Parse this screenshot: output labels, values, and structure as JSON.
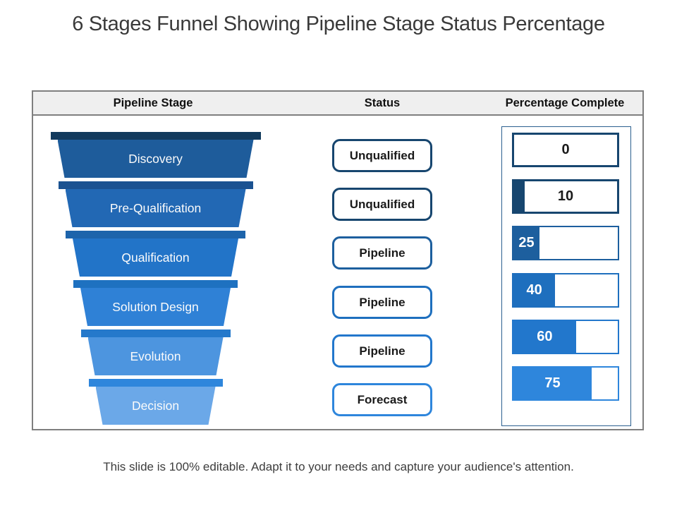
{
  "slide": {
    "title": "6 Stages Funnel Showing Pipeline Stage Status Percentage",
    "footer": "This slide is 100% editable. Adapt it to your needs and capture your audience's attention."
  },
  "table": {
    "headers": [
      "Pipeline Stage",
      "Status",
      "Percentage Complete"
    ]
  },
  "stages": [
    {
      "label": "Discovery",
      "status": "Unqualified",
      "percent": 0,
      "percent_label": "0",
      "bar_color": "#123A5D",
      "body_color": "#1E5C9B",
      "accent": "#17466F"
    },
    {
      "label": "Pre-Qualification",
      "status": "Unqualified",
      "percent": 10,
      "percent_label": "10",
      "bar_color": "#1B5291",
      "body_color": "#2268B4",
      "accent": "#17466F"
    },
    {
      "label": "Qualification",
      "status": "Pipeline",
      "percent": 25,
      "percent_label": "25",
      "bar_color": "#1D64AB",
      "body_color": "#2274C8",
      "accent": "#1D5F9E"
    },
    {
      "label": "Solution Design",
      "status": "Pipeline",
      "percent": 40,
      "percent_label": "40",
      "bar_color": "#1E71C0",
      "body_color": "#2F81D6",
      "accent": "#1E6FBE"
    },
    {
      "label": "Evolution",
      "status": "Pipeline",
      "percent": 60,
      "percent_label": "60",
      "bar_color": "#2579CB",
      "body_color": "#4D95DF",
      "accent": "#2277CC"
    },
    {
      "label": "Decision",
      "status": "Forecast",
      "percent": 75,
      "percent_label": "75",
      "bar_color": "#2E86DC",
      "body_color": "#6BA8E8",
      "accent": "#2E86DC"
    }
  ],
  "chart_data": {
    "type": "table",
    "title": "6 Stages Funnel Showing Pipeline Stage Status Percentage",
    "columns": [
      "Pipeline Stage",
      "Status",
      "Percentage Complete"
    ],
    "rows": [
      [
        "Discovery",
        "Unqualified",
        0
      ],
      [
        "Pre-Qualification",
        "Unqualified",
        10
      ],
      [
        "Qualification",
        "Pipeline",
        25
      ],
      [
        "Solution Design",
        "Pipeline",
        40
      ],
      [
        "Evolution",
        "Pipeline",
        60
      ],
      [
        "Decision",
        "Forecast",
        75
      ]
    ],
    "notes": "Inverted funnel narrows top to bottom; percentage bars fill left to right with stage color"
  },
  "colors": {
    "table_border": "#7F7F7F",
    "header_bg": "#EFEFEF",
    "panel_border": "#2B5F8F",
    "title_text": "#3A3A3A",
    "footer_text": "#3D3D3D"
  }
}
